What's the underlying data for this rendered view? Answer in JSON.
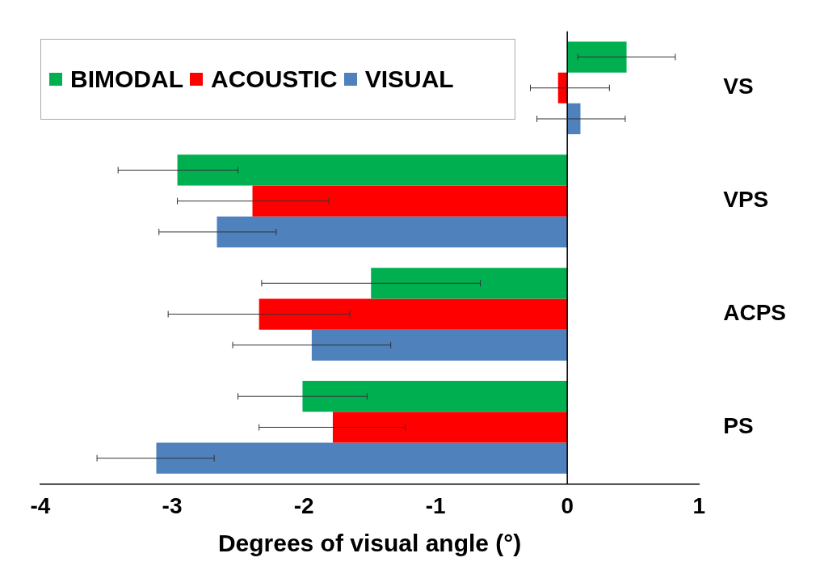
{
  "chart_data": {
    "type": "bar",
    "orientation": "horizontal",
    "xlabel": "Degrees of visual angle (°)",
    "categories": [
      "VS",
      "VPS",
      "ACPS",
      "PS"
    ],
    "series": [
      {
        "name": "BIMODAL",
        "color": "#00b050",
        "values": [
          0.45,
          -2.96,
          -1.49,
          -2.01
        ],
        "errors": [
          [
            0.08,
            0.82
          ],
          [
            -3.41,
            -2.5
          ],
          [
            -2.32,
            -0.66
          ],
          [
            -2.5,
            -1.52
          ]
        ]
      },
      {
        "name": "ACOUSTIC",
        "color": "#ff0000",
        "values": [
          -0.07,
          -2.39,
          -2.34,
          -1.78
        ],
        "errors": [
          [
            -0.28,
            0.32
          ],
          [
            -2.96,
            -1.81
          ],
          [
            -3.03,
            -1.65
          ],
          [
            -2.34,
            -1.23
          ]
        ]
      },
      {
        "name": "VISUAL",
        "color": "#4f81bd",
        "values": [
          0.1,
          -2.66,
          -1.94,
          -3.12
        ],
        "errors": [
          [
            -0.23,
            0.44
          ],
          [
            -3.1,
            -2.21
          ],
          [
            -2.54,
            -1.34
          ],
          [
            -3.57,
            -2.68
          ]
        ]
      }
    ],
    "xlim": [
      -4,
      1
    ],
    "xticks": [
      -4,
      -3,
      -2,
      -1,
      0,
      1
    ],
    "grid": false,
    "legend": "top left",
    "ref_lines": [
      {
        "axis": "x",
        "value": 0,
        "color": "#000000"
      }
    ]
  }
}
